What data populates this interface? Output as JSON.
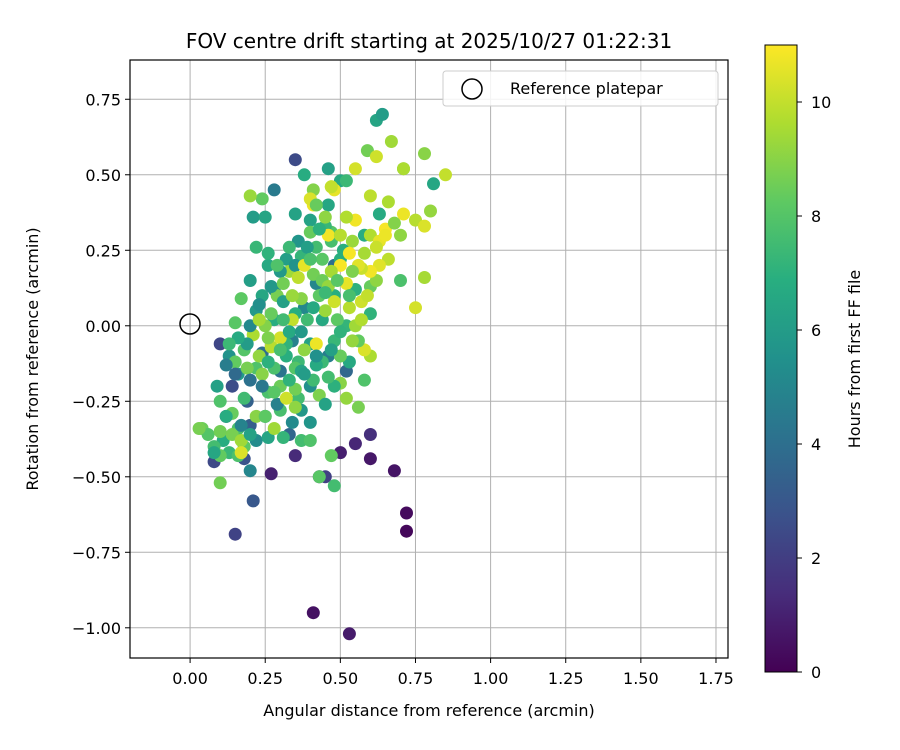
{
  "chart_data": {
    "type": "scatter",
    "title": "FOV centre drift starting at 2025/10/27 01:22:31",
    "xlabel": "Angular distance from reference (arcmin)",
    "ylabel": "Rotation from reference (arcmin)",
    "xlim": [
      -0.2,
      1.79
    ],
    "ylim": [
      -1.1,
      0.88
    ],
    "x_ticks": [
      0.0,
      0.25,
      0.5,
      0.75,
      1.0,
      1.25,
      1.5,
      1.75
    ],
    "x_tick_labels": [
      "0.00",
      "0.25",
      "0.50",
      "0.75",
      "1.00",
      "1.25",
      "1.50",
      "1.75"
    ],
    "y_ticks": [
      0.75,
      0.5,
      0.25,
      0.0,
      -0.25,
      -0.5,
      -0.75,
      -1.0
    ],
    "y_tick_labels": [
      "0.75",
      "0.50",
      "0.25",
      "0.00",
      "−0.25",
      "−0.50",
      "−0.75",
      "−1.00"
    ],
    "grid": true,
    "legend": {
      "position": "top-right",
      "entries": [
        "Reference platepar"
      ]
    },
    "reference_point": {
      "x": 0.0,
      "y": 0.0
    },
    "colorbar": {
      "label": "Hours from first FF file",
      "colormap": "viridis",
      "range": [
        0,
        11
      ],
      "ticks": [
        0,
        2,
        4,
        6,
        8,
        10
      ],
      "tick_labels": [
        "0",
        "2",
        "4",
        "6",
        "8",
        "10"
      ]
    },
    "points": [
      [
        0.41,
        -0.95,
        0.5
      ],
      [
        0.53,
        -1.02,
        0.8
      ],
      [
        0.72,
        -0.62,
        0.3
      ],
      [
        0.72,
        -0.68,
        0.2
      ],
      [
        0.68,
        -0.48,
        0.6
      ],
      [
        0.6,
        -0.44,
        0.7
      ],
      [
        0.55,
        -0.39,
        1.2
      ],
      [
        0.5,
        -0.42,
        0.9
      ],
      [
        0.6,
        -0.36,
        1.5
      ],
      [
        0.27,
        -0.49,
        1.0
      ],
      [
        0.35,
        -0.43,
        1.3
      ],
      [
        0.43,
        -0.5,
        1.6
      ],
      [
        0.15,
        -0.69,
        2.2
      ],
      [
        0.21,
        -0.58,
        3.0
      ],
      [
        0.08,
        -0.45,
        2.4
      ],
      [
        0.1,
        -0.06,
        2.3
      ],
      [
        0.12,
        -0.3,
        2.0
      ],
      [
        0.14,
        -0.2,
        2.6
      ],
      [
        0.2,
        -0.33,
        3.3
      ],
      [
        0.18,
        -0.44,
        2.8
      ],
      [
        0.33,
        -0.36,
        3.6
      ],
      [
        0.35,
        0.55,
        2.5
      ],
      [
        0.28,
        0.45,
        4.5
      ],
      [
        0.45,
        -0.5,
        2.1
      ],
      [
        0.19,
        -0.25,
        3.4
      ],
      [
        0.24,
        -0.09,
        3.9
      ],
      [
        0.3,
        -0.15,
        4.2
      ],
      [
        0.34,
        -0.05,
        4.8
      ],
      [
        0.38,
        0.06,
        5.1
      ],
      [
        0.42,
        0.14,
        5.0
      ],
      [
        0.48,
        0.2,
        4.0
      ],
      [
        0.52,
        -0.15,
        3.7
      ],
      [
        0.46,
        -0.1,
        4.6
      ],
      [
        0.4,
        -0.2,
        5.4
      ],
      [
        0.37,
        -0.28,
        5.8
      ],
      [
        0.25,
        -0.3,
        5.5
      ],
      [
        0.22,
        0.05,
        5.9
      ],
      [
        0.28,
        0.12,
        5.2
      ],
      [
        0.32,
        0.22,
        6.1
      ],
      [
        0.36,
        0.28,
        5.7
      ],
      [
        0.4,
        0.35,
        6.3
      ],
      [
        0.46,
        0.4,
        6.5
      ],
      [
        0.5,
        0.48,
        6.6
      ],
      [
        0.46,
        0.52,
        6.2
      ],
      [
        0.62,
        0.68,
        6.4
      ],
      [
        0.64,
        0.7,
        6.0
      ],
      [
        0.63,
        0.37,
        6.7
      ],
      [
        0.58,
        0.3,
        6.8
      ],
      [
        0.5,
        0.22,
        6.9
      ],
      [
        0.55,
        0.12,
        7.0
      ],
      [
        0.6,
        0.04,
        7.1
      ],
      [
        0.52,
        0.0,
        7.2
      ],
      [
        0.48,
        -0.05,
        7.3
      ],
      [
        0.44,
        -0.12,
        7.4
      ],
      [
        0.41,
        -0.18,
        7.5
      ],
      [
        0.36,
        -0.24,
        7.6
      ],
      [
        0.3,
        -0.28,
        7.7
      ],
      [
        0.26,
        -0.22,
        7.8
      ],
      [
        0.22,
        -0.14,
        7.9
      ],
      [
        0.18,
        -0.08,
        8.0
      ],
      [
        0.15,
        0.01,
        8.1
      ],
      [
        0.17,
        0.09,
        8.2
      ],
      [
        0.2,
        0.15,
        6.1
      ],
      [
        0.24,
        0.1,
        6.5
      ],
      [
        0.28,
        0.02,
        6.8
      ],
      [
        0.32,
        -0.06,
        7.1
      ],
      [
        0.36,
        -0.12,
        7.4
      ],
      [
        0.4,
        -0.06,
        6.3
      ],
      [
        0.44,
        0.02,
        6.6
      ],
      [
        0.48,
        0.1,
        6.9
      ],
      [
        0.13,
        -0.1,
        5.6
      ],
      [
        0.16,
        -0.16,
        5.9
      ],
      [
        0.09,
        -0.2,
        6.2
      ],
      [
        0.11,
        -0.38,
        6.8
      ],
      [
        0.13,
        -0.42,
        7.3
      ],
      [
        0.16,
        -0.34,
        7.8
      ],
      [
        0.18,
        -0.4,
        8.2
      ],
      [
        0.14,
        -0.29,
        8.4
      ],
      [
        0.1,
        -0.52,
        8.6
      ],
      [
        0.04,
        -0.34,
        8.5
      ],
      [
        0.06,
        -0.36,
        8.0
      ],
      [
        0.2,
        -0.48,
        5.0
      ],
      [
        0.22,
        -0.38,
        5.3
      ],
      [
        0.26,
        -0.37,
        6.4
      ],
      [
        0.31,
        -0.37,
        7.2
      ],
      [
        0.37,
        -0.38,
        7.6
      ],
      [
        0.4,
        -0.38,
        7.9
      ],
      [
        0.47,
        -0.43,
        8.3
      ],
      [
        0.48,
        -0.53,
        7.6
      ],
      [
        0.43,
        -0.5,
        8.1
      ],
      [
        0.35,
        -0.21,
        8.6
      ],
      [
        0.43,
        -0.23,
        8.8
      ],
      [
        0.5,
        -0.19,
        9.0
      ],
      [
        0.52,
        -0.24,
        9.2
      ],
      [
        0.56,
        -0.27,
        8.7
      ],
      [
        0.58,
        -0.18,
        7.9
      ],
      [
        0.6,
        -0.1,
        9.6
      ],
      [
        0.58,
        -0.08,
        10.4
      ],
      [
        0.55,
        0.0,
        9.4
      ],
      [
        0.53,
        0.06,
        9.8
      ],
      [
        0.57,
        0.08,
        10.2
      ],
      [
        0.6,
        0.13,
        8.4
      ],
      [
        0.62,
        0.15,
        9.1
      ],
      [
        0.7,
        0.15,
        7.8
      ],
      [
        0.75,
        0.06,
        10.3
      ],
      [
        0.78,
        0.16,
        9.5
      ],
      [
        0.66,
        0.22,
        9.9
      ],
      [
        0.63,
        0.2,
        10.5
      ],
      [
        0.6,
        0.18,
        10.8
      ],
      [
        0.57,
        0.19,
        10.1
      ],
      [
        0.54,
        0.28,
        9.3
      ],
      [
        0.6,
        0.3,
        9.7
      ],
      [
        0.63,
        0.28,
        10.6
      ],
      [
        0.65,
        0.32,
        10.9
      ],
      [
        0.68,
        0.34,
        8.9
      ],
      [
        0.71,
        0.37,
        10.7
      ],
      [
        0.75,
        0.35,
        9.8
      ],
      [
        0.78,
        0.33,
        10.4
      ],
      [
        0.8,
        0.38,
        9.2
      ],
      [
        0.85,
        0.5,
        10.0
      ],
      [
        0.81,
        0.47,
        6.5
      ],
      [
        0.78,
        0.57,
        9.0
      ],
      [
        0.71,
        0.52,
        8.8
      ],
      [
        0.67,
        0.61,
        9.4
      ],
      [
        0.59,
        0.58,
        8.6
      ],
      [
        0.62,
        0.56,
        10.2
      ],
      [
        0.6,
        0.43,
        9.9
      ],
      [
        0.66,
        0.41,
        9.6
      ],
      [
        0.7,
        0.3,
        9.1
      ],
      [
        0.55,
        0.52,
        10.3
      ],
      [
        0.55,
        0.35,
        10.8
      ],
      [
        0.52,
        0.36,
        9.7
      ],
      [
        0.48,
        0.45,
        10.6
      ],
      [
        0.47,
        0.46,
        10.1
      ],
      [
        0.41,
        0.4,
        10.7
      ],
      [
        0.4,
        0.31,
        8.4
      ],
      [
        0.47,
        0.31,
        8.0
      ],
      [
        0.42,
        0.26,
        7.6
      ],
      [
        0.37,
        0.23,
        7.2
      ],
      [
        0.33,
        0.18,
        9.4
      ],
      [
        0.29,
        0.1,
        8.7
      ],
      [
        0.25,
        0.0,
        8.9
      ],
      [
        0.21,
        -0.03,
        9.6
      ],
      [
        0.24,
        -0.16,
        9.0
      ],
      [
        0.3,
        -0.2,
        8.5
      ],
      [
        0.35,
        -0.14,
        8.0
      ],
      [
        0.38,
        -0.08,
        9.1
      ],
      [
        0.42,
        -0.06,
        10.7
      ],
      [
        0.45,
        0.05,
        9.3
      ],
      [
        0.48,
        0.08,
        10.2
      ],
      [
        0.52,
        0.14,
        10.6
      ],
      [
        0.5,
        0.2,
        10.9
      ],
      [
        0.47,
        0.18,
        9.5
      ],
      [
        0.43,
        0.1,
        8.2
      ],
      [
        0.39,
        0.02,
        7.5
      ],
      [
        0.35,
        0.04,
        6.9
      ],
      [
        0.31,
        0.08,
        6.2
      ],
      [
        0.27,
        0.13,
        5.8
      ],
      [
        0.23,
        0.07,
        5.4
      ],
      [
        0.2,
        0.0,
        5.1
      ],
      [
        0.19,
        -0.06,
        6.0
      ],
      [
        0.16,
        -0.04,
        6.7
      ],
      [
        0.13,
        -0.06,
        7.4
      ],
      [
        0.15,
        -0.12,
        8.3
      ],
      [
        0.19,
        -0.14,
        8.7
      ],
      [
        0.23,
        -0.1,
        9.2
      ],
      [
        0.27,
        -0.07,
        9.8
      ],
      [
        0.3,
        -0.04,
        10.3
      ],
      [
        0.34,
        0.02,
        10.0
      ],
      [
        0.37,
        0.09,
        9.0
      ],
      [
        0.41,
        0.17,
        8.6
      ],
      [
        0.44,
        0.22,
        8.1
      ],
      [
        0.47,
        0.28,
        7.7
      ],
      [
        0.45,
        0.33,
        7.3
      ],
      [
        0.41,
        0.45,
        8.9
      ],
      [
        0.38,
        0.5,
        6.8
      ],
      [
        0.4,
        0.42,
        10.4
      ],
      [
        0.46,
        0.3,
        10.8
      ],
      [
        0.51,
        0.25,
        6.9
      ],
      [
        0.53,
        0.1,
        7.7
      ],
      [
        0.56,
        -0.05,
        8.3
      ],
      [
        0.53,
        -0.12,
        6.6
      ],
      [
        0.48,
        -0.2,
        7.0
      ],
      [
        0.45,
        -0.26,
        6.3
      ],
      [
        0.4,
        -0.32,
        5.7
      ],
      [
        0.34,
        -0.32,
        5.2
      ],
      [
        0.29,
        -0.26,
        4.8
      ],
      [
        0.24,
        -0.2,
        4.4
      ],
      [
        0.2,
        -0.18,
        4.1
      ],
      [
        0.15,
        -0.16,
        3.8
      ],
      [
        0.12,
        -0.13,
        4.6
      ],
      [
        0.18,
        -0.24,
        7.5
      ],
      [
        0.14,
        -0.36,
        8.7
      ],
      [
        0.17,
        -0.38,
        9.4
      ],
      [
        0.22,
        -0.3,
        9.0
      ],
      [
        0.28,
        -0.22,
        8.1
      ],
      [
        0.33,
        -0.18,
        7.1
      ],
      [
        0.37,
        -0.15,
        6.4
      ],
      [
        0.42,
        -0.13,
        6.7
      ],
      [
        0.46,
        -0.17,
        7.6
      ],
      [
        0.5,
        -0.1,
        8.4
      ],
      [
        0.54,
        -0.05,
        9.2
      ],
      [
        0.57,
        0.02,
        9.7
      ],
      [
        0.59,
        0.1,
        10.0
      ],
      [
        0.56,
        0.2,
        10.5
      ],
      [
        0.53,
        0.24,
        10.9
      ],
      [
        0.5,
        0.3,
        9.8
      ],
      [
        0.45,
        0.36,
        9.1
      ],
      [
        0.43,
        0.32,
        7.0
      ],
      [
        0.39,
        0.26,
        6.1
      ],
      [
        0.35,
        0.2,
        5.6
      ],
      [
        0.3,
        0.18,
        5.9
      ],
      [
        0.26,
        0.2,
        6.6
      ],
      [
        0.22,
        0.26,
        7.3
      ],
      [
        0.21,
        0.36,
        6.0
      ],
      [
        0.25,
        0.36,
        6.4
      ],
      [
        0.26,
        0.24,
        7.1
      ],
      [
        0.29,
        0.2,
        7.9
      ],
      [
        0.31,
        0.14,
        8.6
      ],
      [
        0.34,
        0.1,
        9.3
      ],
      [
        0.36,
        0.16,
        9.9
      ],
      [
        0.38,
        0.2,
        10.6
      ],
      [
        0.33,
        0.26,
        7.4
      ],
      [
        0.35,
        0.37,
        6.3
      ],
      [
        0.4,
        0.22,
        7.8
      ],
      [
        0.44,
        0.15,
        8.5
      ],
      [
        0.46,
        0.13,
        9.2
      ],
      [
        0.49,
        0.02,
        8.2
      ],
      [
        0.5,
        -0.02,
        7.1
      ],
      [
        0.47,
        -0.08,
        6.2
      ],
      [
        0.42,
        -0.1,
        5.5
      ],
      [
        0.38,
        -0.16,
        6.0
      ],
      [
        0.32,
        -0.1,
        6.9
      ],
      [
        0.28,
        -0.14,
        7.8
      ],
      [
        0.26,
        -0.04,
        8.8
      ],
      [
        0.23,
        0.02,
        9.5
      ],
      [
        0.27,
        0.04,
        8.4
      ],
      [
        0.31,
        0.02,
        7.5
      ],
      [
        0.33,
        -0.02,
        6.7
      ],
      [
        0.37,
        -0.02,
        5.9
      ],
      [
        0.41,
        0.06,
        6.6
      ],
      [
        0.45,
        0.11,
        7.4
      ],
      [
        0.49,
        0.15,
        8.1
      ],
      [
        0.54,
        0.18,
        8.8
      ],
      [
        0.58,
        0.24,
        9.5
      ],
      [
        0.62,
        0.26,
        10.1
      ],
      [
        0.65,
        0.3,
        10.7
      ],
      [
        0.24,
        0.42,
        8.3
      ],
      [
        0.2,
        0.43,
        9.3
      ],
      [
        0.47,
        0.46,
        10.0
      ],
      [
        0.52,
        0.48,
        7.4
      ],
      [
        0.42,
        0.4,
        8.4
      ],
      [
        0.71,
        0.52,
        9.6
      ],
      [
        0.26,
        -0.12,
        7.0
      ],
      [
        0.3,
        -0.08,
        7.7
      ],
      [
        0.1,
        -0.25,
        7.9
      ],
      [
        0.1,
        -0.35,
        8.6
      ],
      [
        0.08,
        -0.4,
        7.6
      ],
      [
        0.1,
        -0.43,
        8.3
      ],
      [
        0.12,
        -0.3,
        6.8
      ],
      [
        0.08,
        -0.42,
        6.5
      ],
      [
        0.16,
        -0.43,
        7.8
      ],
      [
        0.17,
        -0.42,
        10.4
      ],
      [
        0.03,
        -0.34,
        8.7
      ],
      [
        0.17,
        -0.33,
        4.9
      ],
      [
        0.2,
        -0.36,
        6.3
      ],
      [
        0.25,
        -0.3,
        8.2
      ],
      [
        0.28,
        -0.34,
        9.4
      ],
      [
        0.32,
        -0.24,
        10.2
      ],
      [
        0.35,
        -0.27,
        9.1
      ]
    ]
  }
}
